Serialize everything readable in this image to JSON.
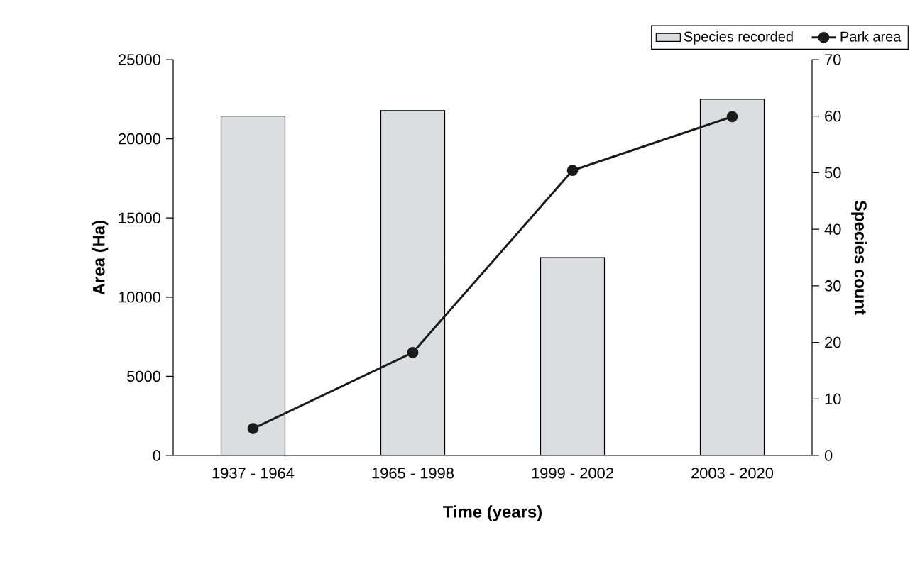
{
  "chart_data": {
    "type": "bar",
    "categories": [
      "1937 - 1964",
      "1965 - 1998",
      "1999 - 2002",
      "2003 - 2020"
    ],
    "series": [
      {
        "name": "Species recorded",
        "axis": "y2",
        "color": "#dcdde0",
        "values": [
          60,
          61,
          35,
          63
        ]
      },
      {
        "name": "Park area",
        "type": "line",
        "axis": "y",
        "color": "#1a1a1a",
        "values": [
          1700,
          6500,
          18000,
          21400
        ]
      }
    ],
    "xlabel": "Time (years)",
    "ylabel": "Area (Ha)",
    "y2label": "Species count",
    "ylim": [
      0,
      25000
    ],
    "yticks": [
      0,
      5000,
      10000,
      15000,
      20000,
      25000
    ],
    "y2lim": [
      0,
      70
    ],
    "y2ticks": [
      0,
      10,
      20,
      30,
      40,
      50,
      60,
      70
    ],
    "legend": "top right",
    "marker": "circle"
  }
}
